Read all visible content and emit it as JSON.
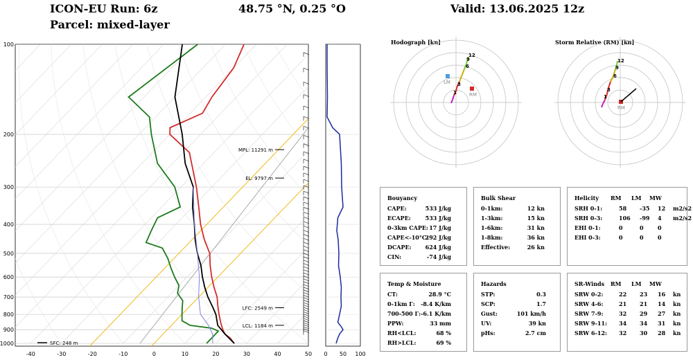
{
  "header": {
    "run": "ICON-EU Run: 6z",
    "location": "48.75 °N, 0.25 °O",
    "valid": "Valid: 13.06.2025 12z",
    "parcel": "Parcel: mixed-layer"
  },
  "chart_data": {
    "type": "skew-t",
    "pressure_ticks": [
      "100",
      "200",
      "300",
      "400",
      "500",
      "600",
      "700",
      "800",
      "900",
      "1000"
    ],
    "temp_ticks": [
      "-40",
      "-30",
      "-20",
      "-10",
      "0",
      "10",
      "20",
      "30",
      "40",
      "50"
    ],
    "wind_ticks": [
      "0",
      "50",
      "100"
    ],
    "annotations": [
      {
        "label": "MPL: 11291 m",
        "p": 225
      },
      {
        "label": "EL: 9797 m",
        "p": 280
      },
      {
        "label": "LFC: 2549 m",
        "p": 760
      },
      {
        "label": "LCL: 1184 m",
        "p": 870
      }
    ],
    "sfc_label": "SFC: 248 m",
    "series": [
      {
        "name": "temperature",
        "color": "#d42a2a",
        "points": [
          [
            100,
            -64
          ],
          [
            120,
            -60
          ],
          [
            150,
            -58
          ],
          [
            170,
            -56
          ],
          [
            190,
            -62
          ],
          [
            200,
            -60
          ],
          [
            230,
            -48
          ],
          [
            260,
            -42
          ],
          [
            300,
            -35
          ],
          [
            350,
            -28
          ],
          [
            400,
            -22
          ],
          [
            450,
            -16
          ],
          [
            500,
            -10
          ],
          [
            550,
            -6
          ],
          [
            600,
            -2
          ],
          [
            650,
            2
          ],
          [
            700,
            6
          ],
          [
            750,
            9
          ],
          [
            800,
            12
          ],
          [
            850,
            15
          ],
          [
            900,
            18
          ],
          [
            930,
            20
          ],
          [
            960,
            23
          ],
          [
            1000,
            26
          ]
        ]
      },
      {
        "name": "dewpoint",
        "color": "#1a7a1a",
        "points": [
          [
            100,
            -79
          ],
          [
            150,
            -85
          ],
          [
            175,
            -72
          ],
          [
            200,
            -66
          ],
          [
            250,
            -55
          ],
          [
            300,
            -42
          ],
          [
            350,
            -34
          ],
          [
            380,
            -38
          ],
          [
            420,
            -36
          ],
          [
            460,
            -34
          ],
          [
            480,
            -27
          ],
          [
            520,
            -22
          ],
          [
            560,
            -18
          ],
          [
            600,
            -14
          ],
          [
            640,
            -10
          ],
          [
            680,
            -8
          ],
          [
            720,
            -4
          ],
          [
            760,
            -2
          ],
          [
            800,
            0
          ],
          [
            840,
            2
          ],
          [
            870,
            6
          ],
          [
            890,
            14
          ],
          [
            910,
            17
          ],
          [
            950,
            17
          ],
          [
            1000,
            17
          ]
        ]
      },
      {
        "name": "parcel",
        "color": "#000000",
        "points": [
          [
            100,
            -84
          ],
          [
            150,
            -70
          ],
          [
            200,
            -56
          ],
          [
            250,
            -46
          ],
          [
            300,
            -36
          ],
          [
            350,
            -30
          ],
          [
            400,
            -24
          ],
          [
            450,
            -19
          ],
          [
            500,
            -14
          ],
          [
            550,
            -9
          ],
          [
            600,
            -5
          ],
          [
            650,
            -1
          ],
          [
            700,
            3
          ],
          [
            760,
            8
          ],
          [
            800,
            11
          ],
          [
            870,
            15
          ],
          [
            930,
            20
          ],
          [
            1000,
            26
          ]
        ]
      },
      {
        "name": "virtual-temp",
        "color": "#8080e0",
        "points": [
          [
            300,
            -36
          ],
          [
            400,
            -24
          ],
          [
            500,
            -14
          ],
          [
            600,
            -6
          ],
          [
            700,
            0
          ],
          [
            800,
            6
          ],
          [
            870,
            12
          ],
          [
            930,
            16
          ],
          [
            1000,
            19
          ]
        ]
      }
    ],
    "wind_profile_kn": [
      [
        100,
        4
      ],
      [
        120,
        4
      ],
      [
        150,
        5
      ],
      [
        175,
        4
      ],
      [
        190,
        20
      ],
      [
        200,
        40
      ],
      [
        250,
        45
      ],
      [
        300,
        46
      ],
      [
        350,
        50
      ],
      [
        380,
        35
      ],
      [
        420,
        32
      ],
      [
        450,
        36
      ],
      [
        500,
        38
      ],
      [
        550,
        37
      ],
      [
        600,
        42
      ],
      [
        650,
        45
      ],
      [
        700,
        44
      ],
      [
        750,
        45
      ],
      [
        800,
        40
      ],
      [
        850,
        35
      ],
      [
        880,
        45
      ],
      [
        900,
        50
      ],
      [
        930,
        40
      ],
      [
        960,
        35
      ],
      [
        1000,
        30
      ]
    ]
  },
  "hodograph": {
    "title": "Hodograph [kn]",
    "lm_label": "LM",
    "rm_label": "RM",
    "height_labels": [
      "1",
      "3",
      "6",
      "9",
      "12"
    ]
  },
  "storm_relative": {
    "title": "Storm Relative (RM) [kn]",
    "rm_label": "RM",
    "height_labels": [
      "1",
      "3",
      "6",
      "9",
      "12"
    ]
  },
  "buoyancy": {
    "title": "Bouyancy",
    "rows": [
      {
        "label": "CAPE:",
        "value": "533 J/kg"
      },
      {
        "label": "ECAPE:",
        "value": "533 J/kg"
      },
      {
        "label": "0-3km CAPE:",
        "value": "17 J/kg"
      },
      {
        "label": "CAPE<-10°C:",
        "value": "292 J/kg"
      },
      {
        "label": "DCAPE:",
        "value": "624 J/kg"
      },
      {
        "label": "CIN:",
        "value": "-74 J/kg"
      }
    ]
  },
  "bulk_shear": {
    "title": "Bulk Shear",
    "rows": [
      {
        "label": "0-1km:",
        "value": "12 kn"
      },
      {
        "label": "1-3km:",
        "value": "15 kn"
      },
      {
        "label": "1-6km:",
        "value": "31 kn"
      },
      {
        "label": "1-8km:",
        "value": "36 kn"
      },
      {
        "label": "Effective:",
        "value": "26 kn"
      }
    ]
  },
  "helicity": {
    "title": "Helicity",
    "cols": [
      "RM",
      "LM",
      "MW"
    ],
    "rows": [
      {
        "label": "SRH 0-1:",
        "rm": "58",
        "lm": "-35",
        "mw": "12",
        "unit": "m2/s2"
      },
      {
        "label": "SRH 0-3:",
        "rm": "106",
        "lm": "-99",
        "mw": "4",
        "unit": "m2/s2"
      },
      {
        "label": "EHI 0-1:",
        "rm": "0",
        "lm": "0",
        "mw": "0",
        "unit": ""
      },
      {
        "label": "EHI 0-3:",
        "rm": "0",
        "lm": "0",
        "mw": "0",
        "unit": ""
      }
    ]
  },
  "temp_moisture": {
    "title": "Temp & Moisture",
    "rows": [
      {
        "label": "CT:",
        "value": "28.9 °C"
      },
      {
        "label": "0-1km Γ:",
        "value": "-8.4 K/km"
      },
      {
        "label": "700-500 Γ:",
        "value": "-6.1 K/km"
      },
      {
        "label": "PPW:",
        "value": "33 mm"
      },
      {
        "label": "RH<LCL:",
        "value": "68 %"
      },
      {
        "label": "RH>LCL:",
        "value": "69 %"
      }
    ]
  },
  "hazards": {
    "title": "Hazards",
    "rows": [
      {
        "label": "STP:",
        "value": "0.3"
      },
      {
        "label": "SCP:",
        "value": "1.7"
      },
      {
        "label": "Gust:",
        "value": "101 km/h"
      },
      {
        "label": "UV:",
        "value": "39 kn"
      },
      {
        "label": "pHs:",
        "value": "2.7 cm"
      }
    ]
  },
  "sr_winds": {
    "title": "SR-Winds",
    "cols": [
      "RM",
      "LM",
      "MW"
    ],
    "rows": [
      {
        "label": "SRW 0-2:",
        "rm": "22",
        "lm": "23",
        "mw": "16",
        "unit": "kn"
      },
      {
        "label": "SRW 4-6:",
        "rm": "21",
        "lm": "21",
        "mw": "14",
        "unit": "kn"
      },
      {
        "label": "SRW 7-9:",
        "rm": "32",
        "lm": "29",
        "mw": "27",
        "unit": "kn"
      },
      {
        "label": "SRW 9-11:",
        "rm": "34",
        "lm": "34",
        "mw": "31",
        "unit": "kn"
      },
      {
        "label": "SRW 6-12:",
        "rm": "32",
        "lm": "30",
        "mw": "28",
        "unit": "kn"
      }
    ]
  },
  "colors": {
    "temperature": "#d42a2a",
    "dewpoint": "#1a7a1a",
    "parcel": "#000000",
    "wind": "#1a2a9a",
    "isotherm": "#f0b400",
    "dry": "#999999"
  }
}
